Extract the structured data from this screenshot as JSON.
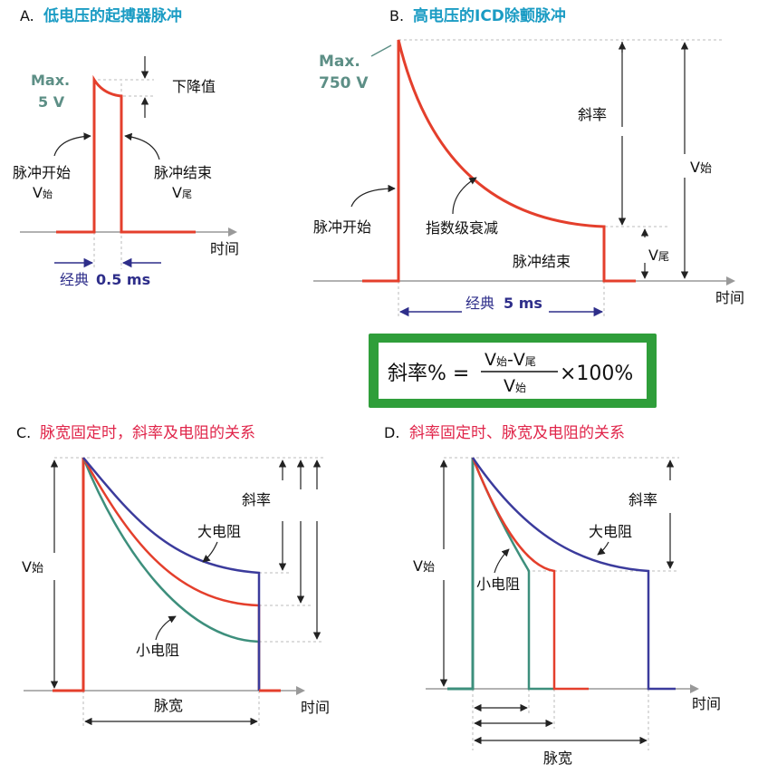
{
  "colors": {
    "title_a_b": "#1b9cc4",
    "title_c_d": "#e0254a",
    "pulse": "#e43f2c",
    "blue_curve": "#3b3b9c",
    "green_curve": "#3d8f7c",
    "grey_label": "#5d8f86",
    "dark_blue_label": "#2e2e8a",
    "formula_bg": "#2f9e3a",
    "dashed": "#bbbbbb"
  },
  "panel_a": {
    "letter": "A.",
    "title": "低电压的起搏器脉冲",
    "max_label": "Max.",
    "max_value": "5 V",
    "droop_label": "下降值",
    "start_label": "脉冲开始",
    "start_v": "V",
    "start_v_sub": "始",
    "end_label": "脉冲结束",
    "end_v": "V",
    "end_v_sub": "尾",
    "time_label": "时间",
    "width_prefix": "经典",
    "width_value": "0.5 ms"
  },
  "panel_b": {
    "letter": "B.",
    "title": "高电压的ICD除颤脉冲",
    "max_label": "Max.",
    "max_value": "750 V",
    "slope_label": "斜率",
    "v_start": "V",
    "v_start_sub": "始",
    "v_end": "V",
    "v_end_sub": "尾",
    "start_label": "脉冲开始",
    "decay_label": "指数级衰减",
    "end_label": "脉冲结束",
    "time_label": "时间",
    "width_prefix": "经典",
    "width_value": "5 ms"
  },
  "formula": {
    "lhs": "斜率% =",
    "num_v1": "V",
    "num_v1_sub": "始",
    "num_minus": "-",
    "num_v2": "V",
    "num_v2_sub": "尾",
    "den_v": "V",
    "den_v_sub": "始",
    "rhs": "×100%"
  },
  "panel_c": {
    "letter": "C.",
    "title": "脉宽固定时，斜率及电阻的关系",
    "v_start": "V",
    "v_start_sub": "始",
    "slope_label": "斜率",
    "high_r_label": "大电阻",
    "low_r_label": "小电阻",
    "width_label": "脉宽",
    "time_label": "时间"
  },
  "panel_d": {
    "letter": "D.",
    "title": "斜率固定时、脉宽及电阻的关系",
    "v_start": "V",
    "v_start_sub": "始",
    "slope_label": "斜率",
    "high_r_label": "大电阻",
    "low_r_label": "小电阻",
    "width_label": "脉宽",
    "time_label": "时间"
  }
}
